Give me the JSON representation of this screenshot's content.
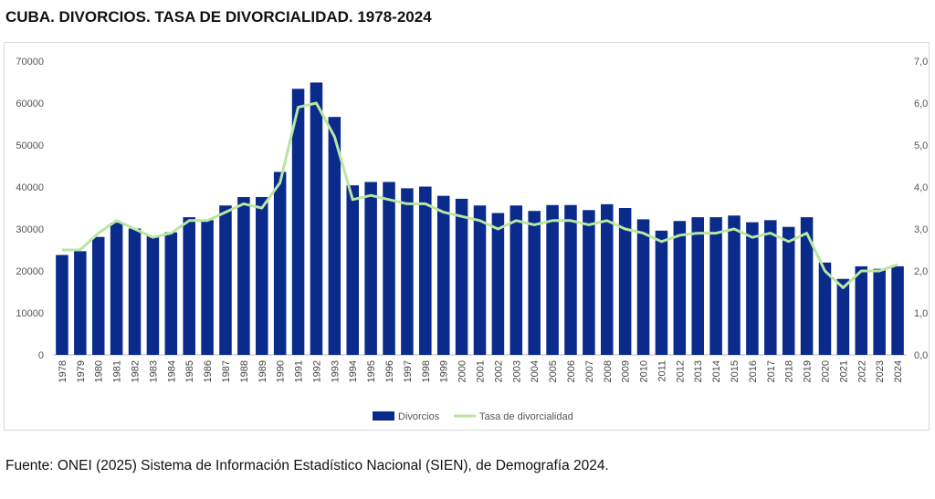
{
  "chart_data": {
    "type": "bar+line",
    "title": "CUBA. DIVORCIOS. TASA DE DIVORCIALIDAD. 1978-2024",
    "categories": [
      "1978",
      "1979",
      "1980",
      "1981",
      "1982",
      "1983",
      "1984",
      "1985",
      "1986",
      "1987",
      "1988",
      "1989",
      "1990",
      "1991",
      "1992",
      "1993",
      "1994",
      "1995",
      "1996",
      "1997",
      "1998",
      "1999",
      "2000",
      "2001",
      "2002",
      "2003",
      "2004",
      "2005",
      "2006",
      "2007",
      "2008",
      "2009",
      "2010",
      "2011",
      "2012",
      "2013",
      "2014",
      "2015",
      "2016",
      "2017",
      "2018",
      "2019",
      "2020",
      "2021",
      "2022",
      "2023",
      "2024"
    ],
    "series": [
      {
        "name": "Divorcios",
        "type": "bar",
        "axis": "left",
        "color": "#0a2a8c",
        "values": [
          23800,
          24700,
          28100,
          31500,
          30100,
          28300,
          29200,
          32800,
          32100,
          35600,
          37600,
          37600,
          43600,
          63400,
          64900,
          56700,
          40400,
          41200,
          41200,
          39700,
          40100,
          37900,
          37200,
          35600,
          33800,
          35600,
          34300,
          35700,
          35700,
          34500,
          35900,
          35000,
          32300,
          29600,
          31900,
          32800,
          32800,
          33200,
          31600,
          32100,
          30500,
          32800,
          22000,
          18100,
          21100,
          20500,
          21100
        ]
      },
      {
        "name": "Tasa de divorcialidad",
        "type": "line",
        "axis": "right",
        "color": "#b9e6a0",
        "values": [
          2.5,
          2.5,
          2.9,
          3.2,
          3.0,
          2.8,
          2.9,
          3.2,
          3.2,
          3.4,
          3.6,
          3.5,
          4.1,
          5.9,
          6.0,
          5.2,
          3.7,
          3.8,
          3.7,
          3.6,
          3.6,
          3.4,
          3.3,
          3.2,
          3.0,
          3.2,
          3.1,
          3.2,
          3.2,
          3.1,
          3.2,
          3.0,
          2.9,
          2.7,
          2.85,
          2.9,
          2.9,
          3.0,
          2.8,
          2.9,
          2.7,
          2.9,
          2.0,
          1.6,
          2.0,
          2.0,
          2.15
        ]
      }
    ],
    "left_axis": {
      "ylim": [
        0,
        70000
      ],
      "ticks": [
        "0",
        "10000",
        "20000",
        "30000",
        "40000",
        "50000",
        "60000",
        "70000"
      ]
    },
    "right_axis": {
      "ylim": [
        0,
        7
      ],
      "ticks": [
        "0,0",
        "1,0",
        "2,0",
        "3,0",
        "4,0",
        "5,0",
        "6,0",
        "7,0"
      ]
    },
    "grid": false,
    "legend": "bottom"
  },
  "source": "Fuente: ONEI (2025) Sistema de Información Estadístico Nacional (SIEN), de Demografía 2024."
}
